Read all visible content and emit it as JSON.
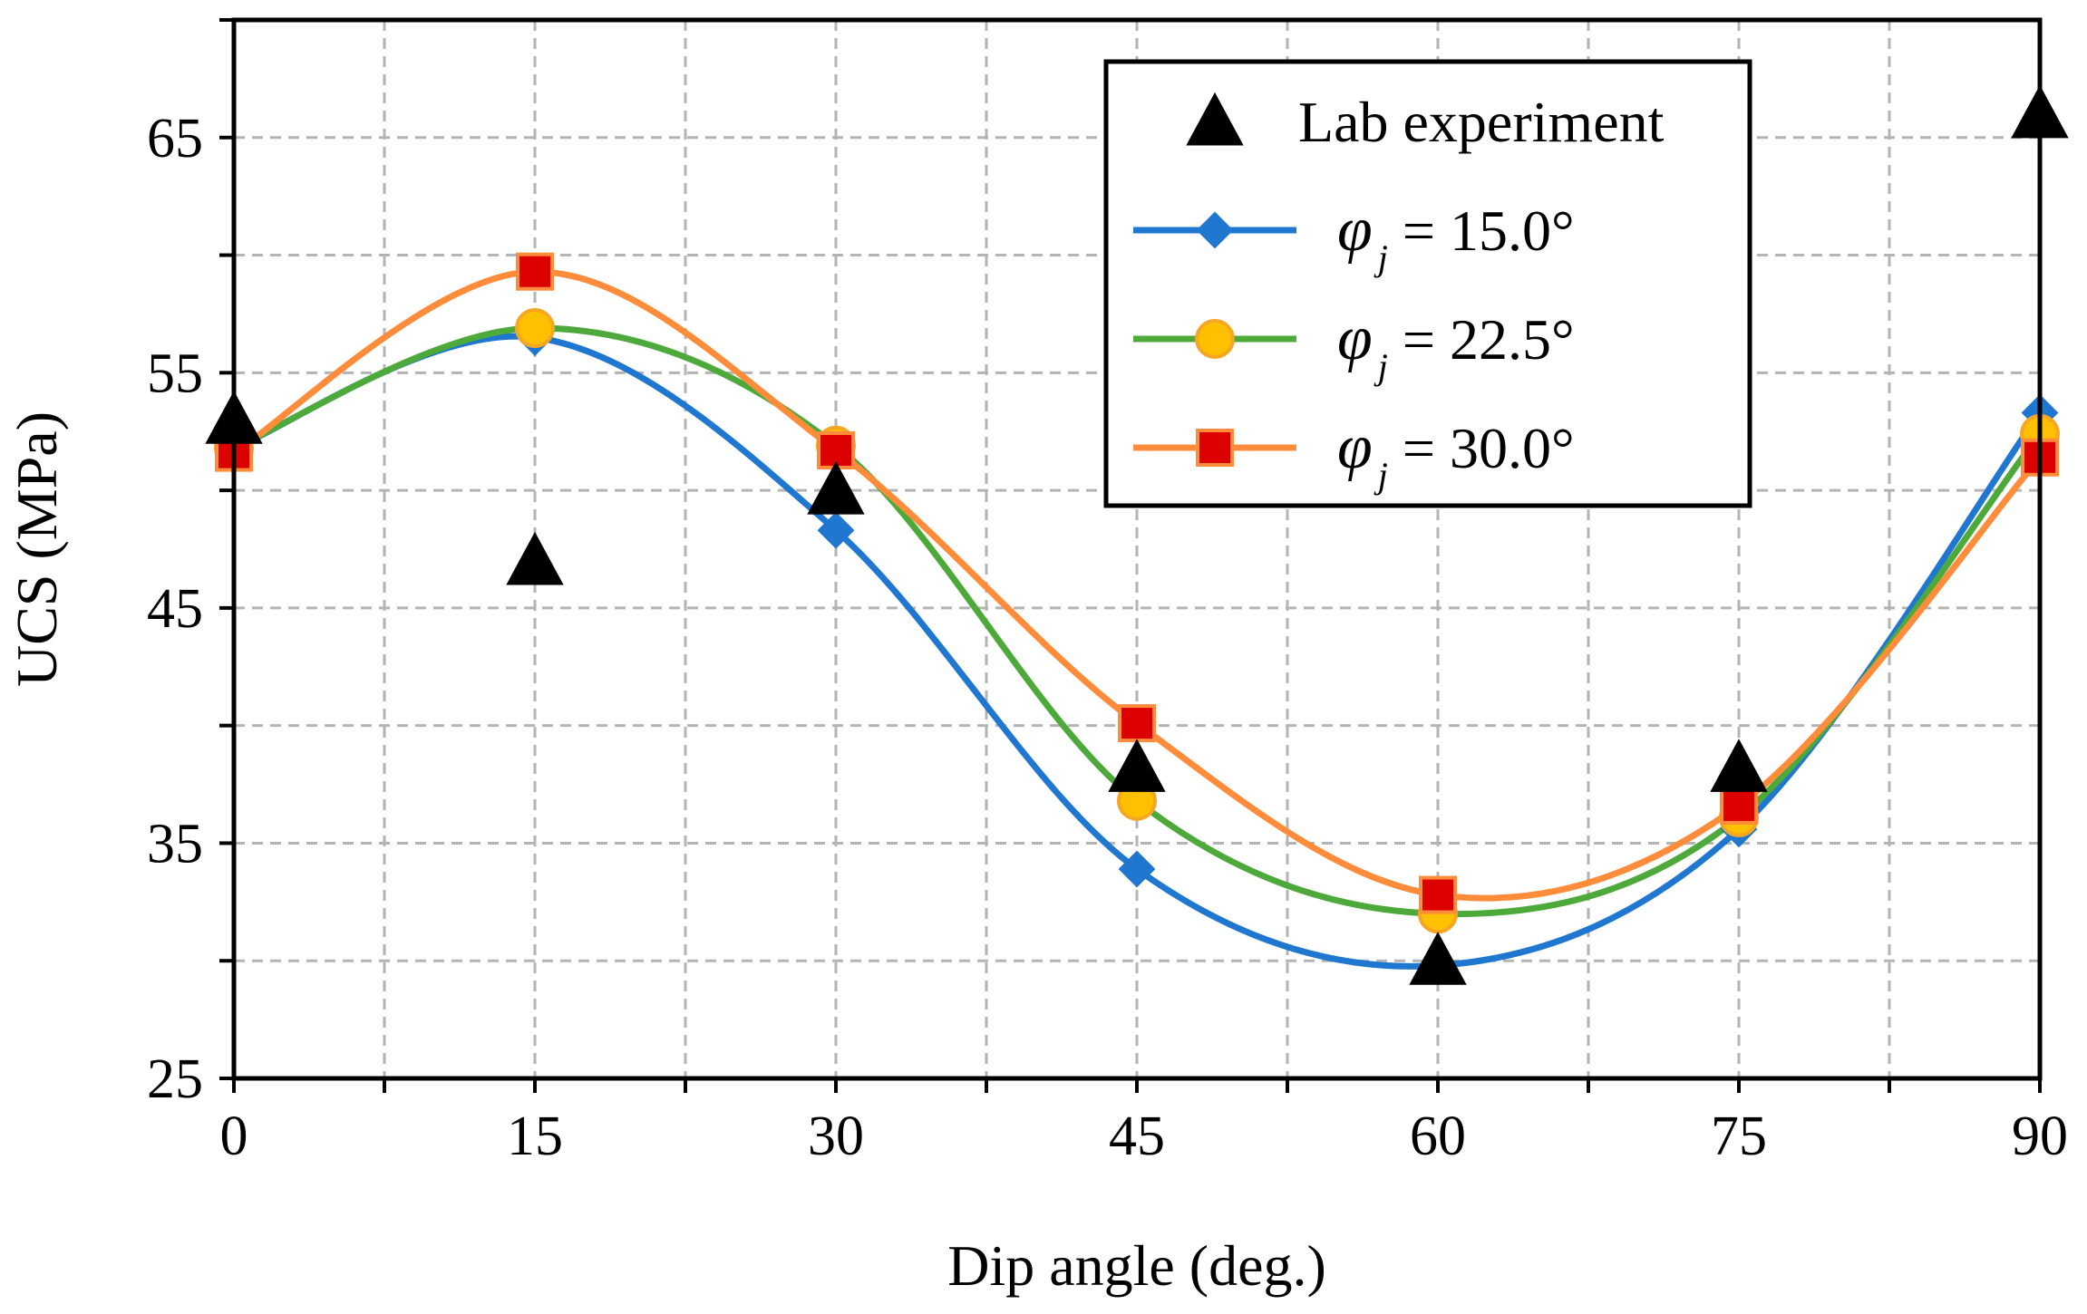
{
  "chart_data": {
    "type": "line",
    "xlabel": "Dip angle (deg.)",
    "ylabel": "UCS (MPa)",
    "xlim": [
      0,
      90
    ],
    "ylim": [
      25,
      70
    ],
    "x_ticks": [
      0,
      15,
      30,
      45,
      60,
      75,
      90
    ],
    "x_tick_labels": [
      "0",
      "15",
      "30",
      "45",
      "60",
      "75",
      "90"
    ],
    "y_ticks": [
      25,
      35,
      45,
      55,
      65
    ],
    "y_tick_labels": [
      "25",
      "35",
      "45",
      "55",
      "65"
    ],
    "grid": true,
    "legend_position": "top-right",
    "x": [
      0,
      15,
      30,
      45,
      60,
      75,
      90
    ],
    "series": [
      {
        "name": "Lab experiment",
        "style": "markers",
        "marker": "triangle",
        "color": "#000000",
        "values": [
          53.0,
          47.0,
          50.0,
          38.2,
          30.0,
          38.2,
          66.0
        ]
      },
      {
        "name": "φj = 15.0°",
        "symbol": "φ",
        "subscript": "j",
        "rest": " = 15.0°",
        "style": "smooth-line-markers",
        "marker": "diamond",
        "color": "#1f77d0",
        "marker_fill": "#1f77d0",
        "marker_stroke": "#1f77d0",
        "values": [
          51.8,
          56.5,
          48.3,
          33.9,
          29.8,
          35.6,
          53.3
        ]
      },
      {
        "name": "φj = 22.5°",
        "symbol": "φ",
        "subscript": "j",
        "rest": " = 22.5°",
        "style": "smooth-line-markers",
        "marker": "circle",
        "color": "#4daa3a",
        "marker_fill": "#ffc000",
        "marker_stroke": "#f5a623",
        "values": [
          51.8,
          56.9,
          51.9,
          36.8,
          32.0,
          36.1,
          52.4
        ]
      },
      {
        "name": "φj = 30.0°",
        "symbol": "φ",
        "subscript": "j",
        "rest": " = 30.0°",
        "style": "smooth-line-markers",
        "marker": "square",
        "color": "#ff8c3a",
        "marker_fill": "#dd0000",
        "marker_stroke": "#ff8c3a",
        "values": [
          51.6,
          59.3,
          51.7,
          40.1,
          32.8,
          36.6,
          51.4
        ]
      }
    ]
  }
}
